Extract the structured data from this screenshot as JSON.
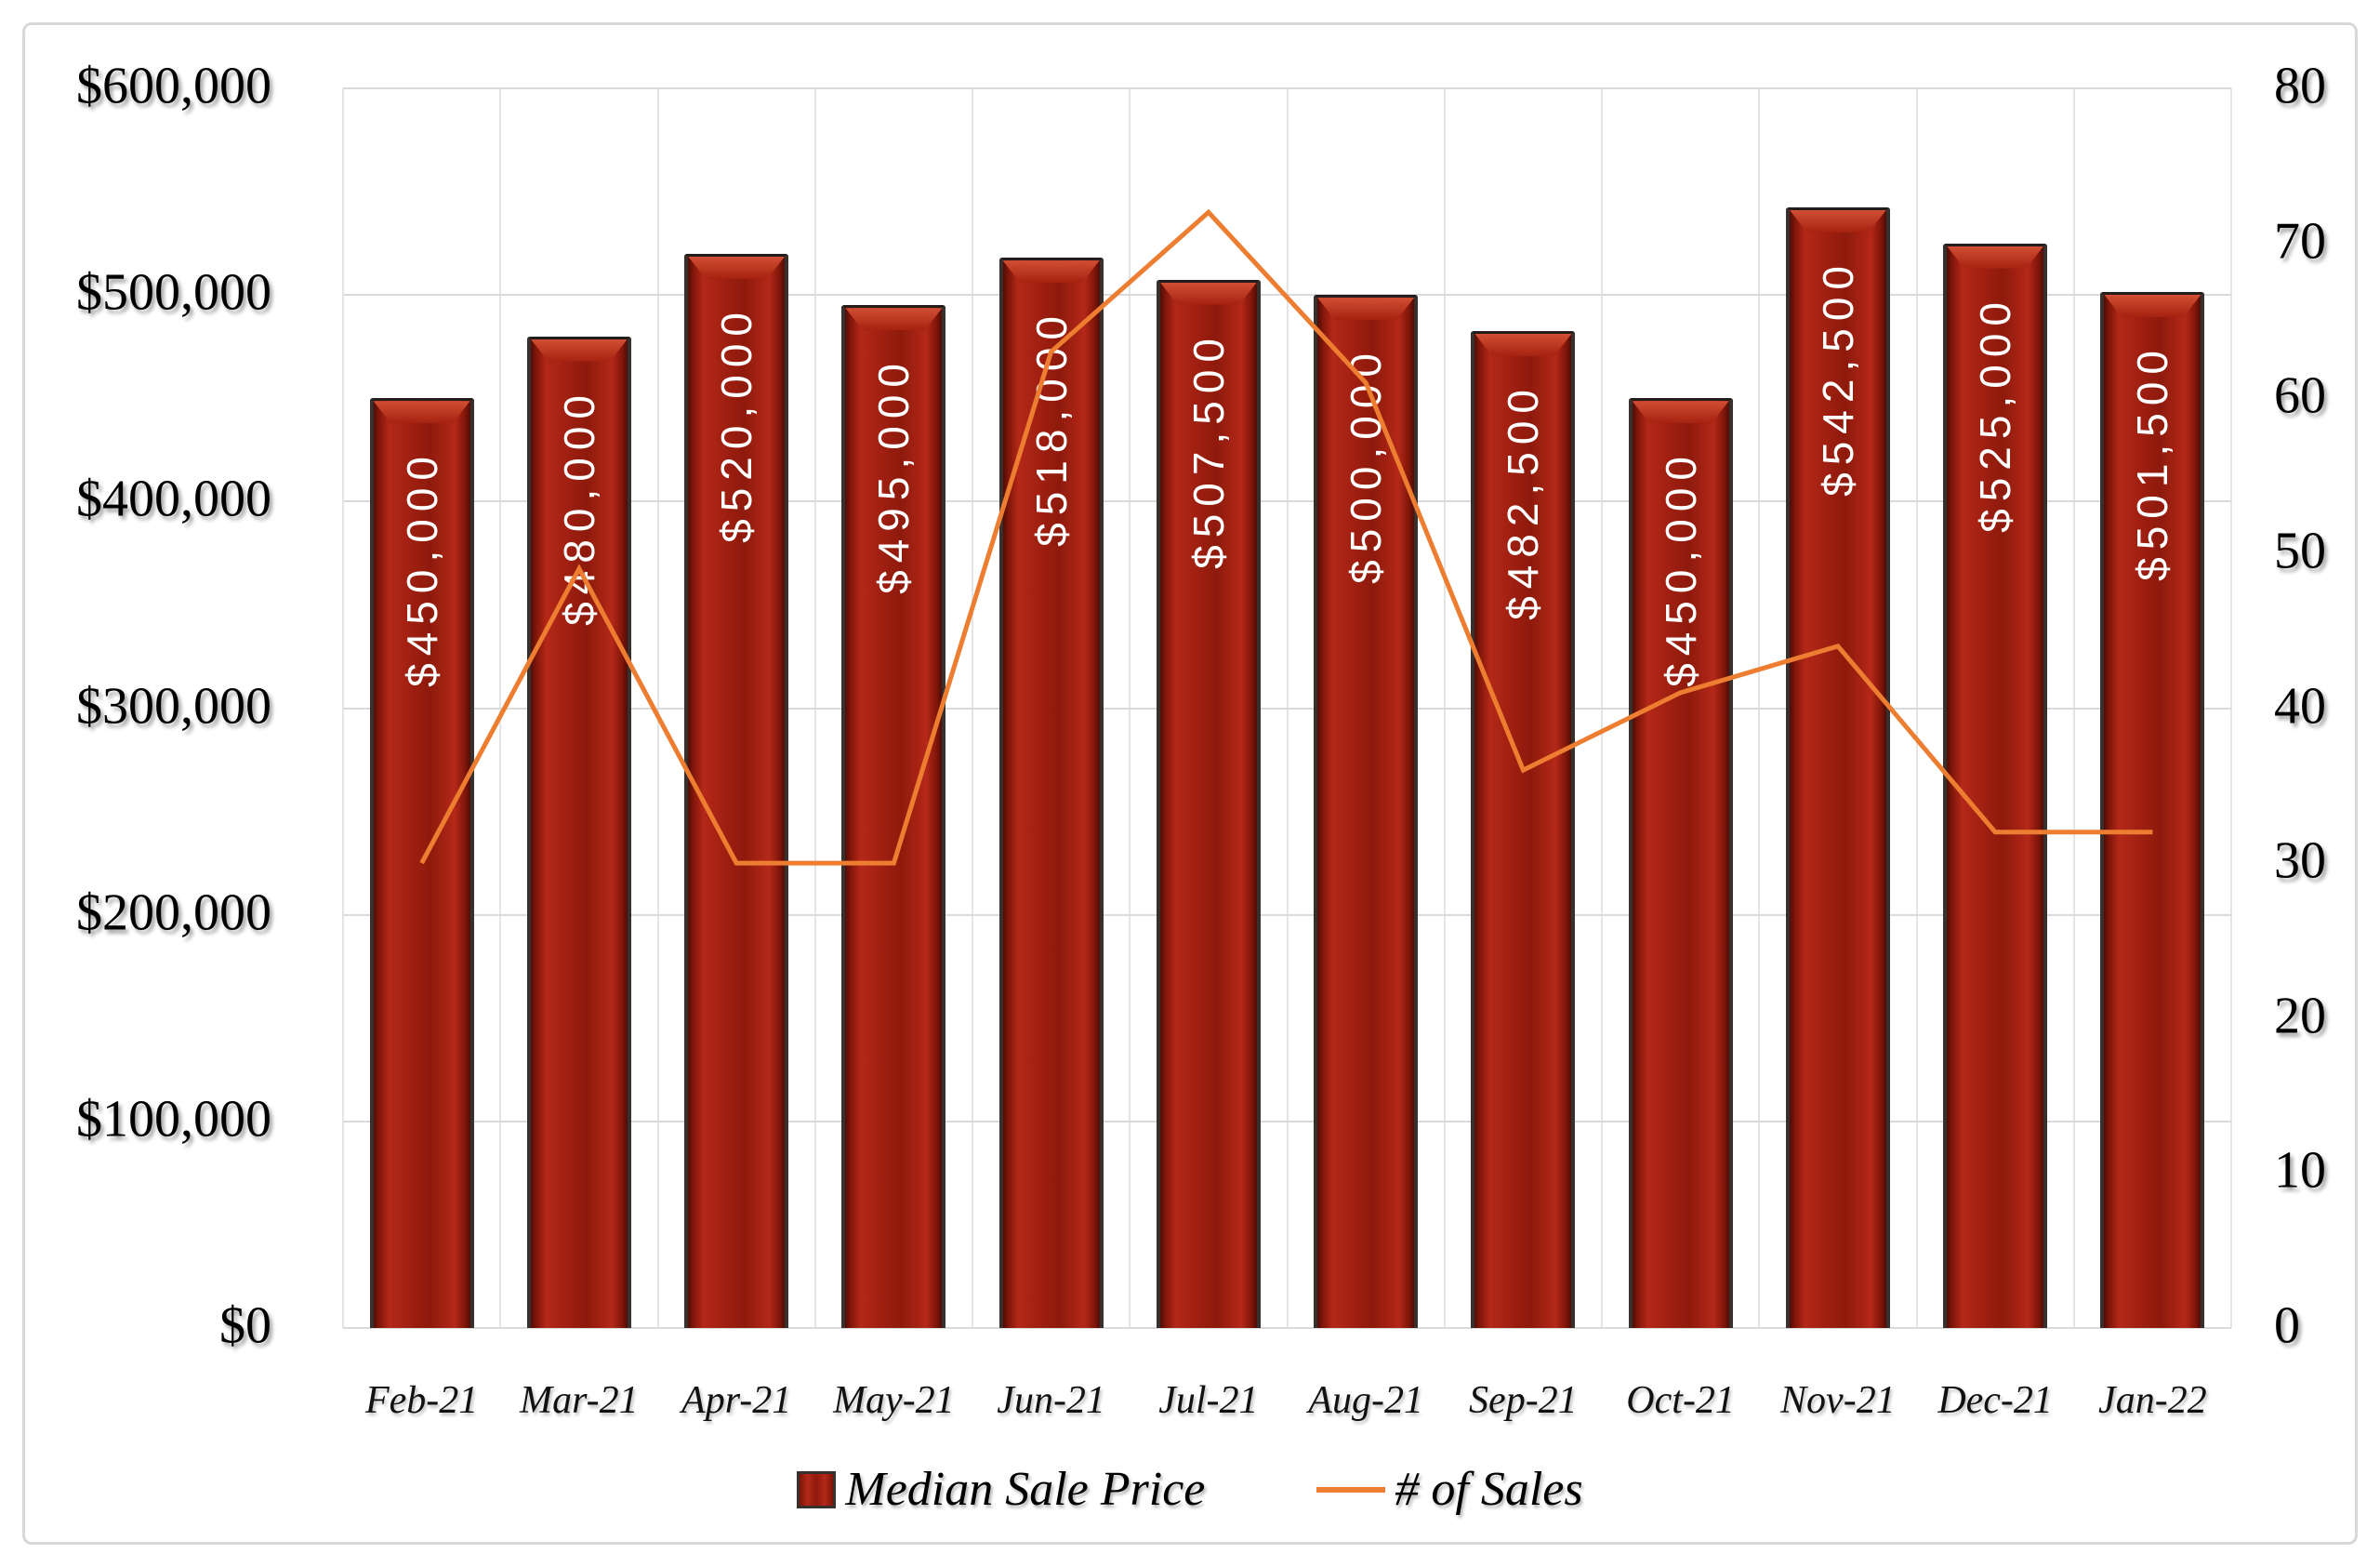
{
  "chart_data": {
    "type": "combo_bar_line",
    "categories": [
      "Feb-21",
      "Mar-21",
      "Apr-21",
      "May-21",
      "Jun-21",
      "Jul-21",
      "Aug-21",
      "Sep-21",
      "Oct-21",
      "Nov-21",
      "Dec-21",
      "Jan-22"
    ],
    "series": [
      {
        "name": "Median Sale Price",
        "type": "bar",
        "axis": "left",
        "values": [
          450000,
          480000,
          520000,
          495000,
          518000,
          507500,
          500000,
          482500,
          450000,
          542500,
          525000,
          501500
        ],
        "labels": [
          "$450,000",
          "$480,000",
          "$520,000",
          "$495,000",
          "$518,000",
          "$507,500",
          "$500,000",
          "$482,500",
          "$450,000",
          "$542,500",
          "$525,000",
          "$501,500"
        ],
        "color": "#9E1B10"
      },
      {
        "name": "# of Sales",
        "type": "line",
        "axis": "right",
        "values": [
          30,
          49,
          30,
          30,
          63,
          72,
          61,
          36,
          41,
          44,
          32,
          32
        ],
        "color": "#ED7D31"
      }
    ],
    "left_axis": {
      "min": 0,
      "max": 600000,
      "step": 100000,
      "tick_labels_top_to_bottom": [
        "$600,000",
        "$500,000",
        "$400,000",
        "$300,000",
        "$200,000",
        "$100,000",
        "$0"
      ]
    },
    "right_axis": {
      "min": 0,
      "max": 80,
      "step": 10,
      "tick_labels_top_to_bottom": [
        "80",
        "70",
        "60",
        "50",
        "40",
        "30",
        "20",
        "10",
        "0"
      ]
    },
    "grid": true,
    "legend_position": "bottom"
  },
  "legend": {
    "items": [
      {
        "label": "Median Sale Price",
        "swatch": "bar-square"
      },
      {
        "label": "# of Sales",
        "swatch": "line-segment"
      }
    ]
  },
  "colors": {
    "bar_fill": "#9E1B10",
    "bar_border": "#38302d",
    "bar_label_text": "#FFFFFF",
    "line": "#ED7D31",
    "gridline": "#DADADA",
    "axis_text": "#000000",
    "background": "#FFFFFF",
    "frame_border": "#D8D8D8"
  }
}
